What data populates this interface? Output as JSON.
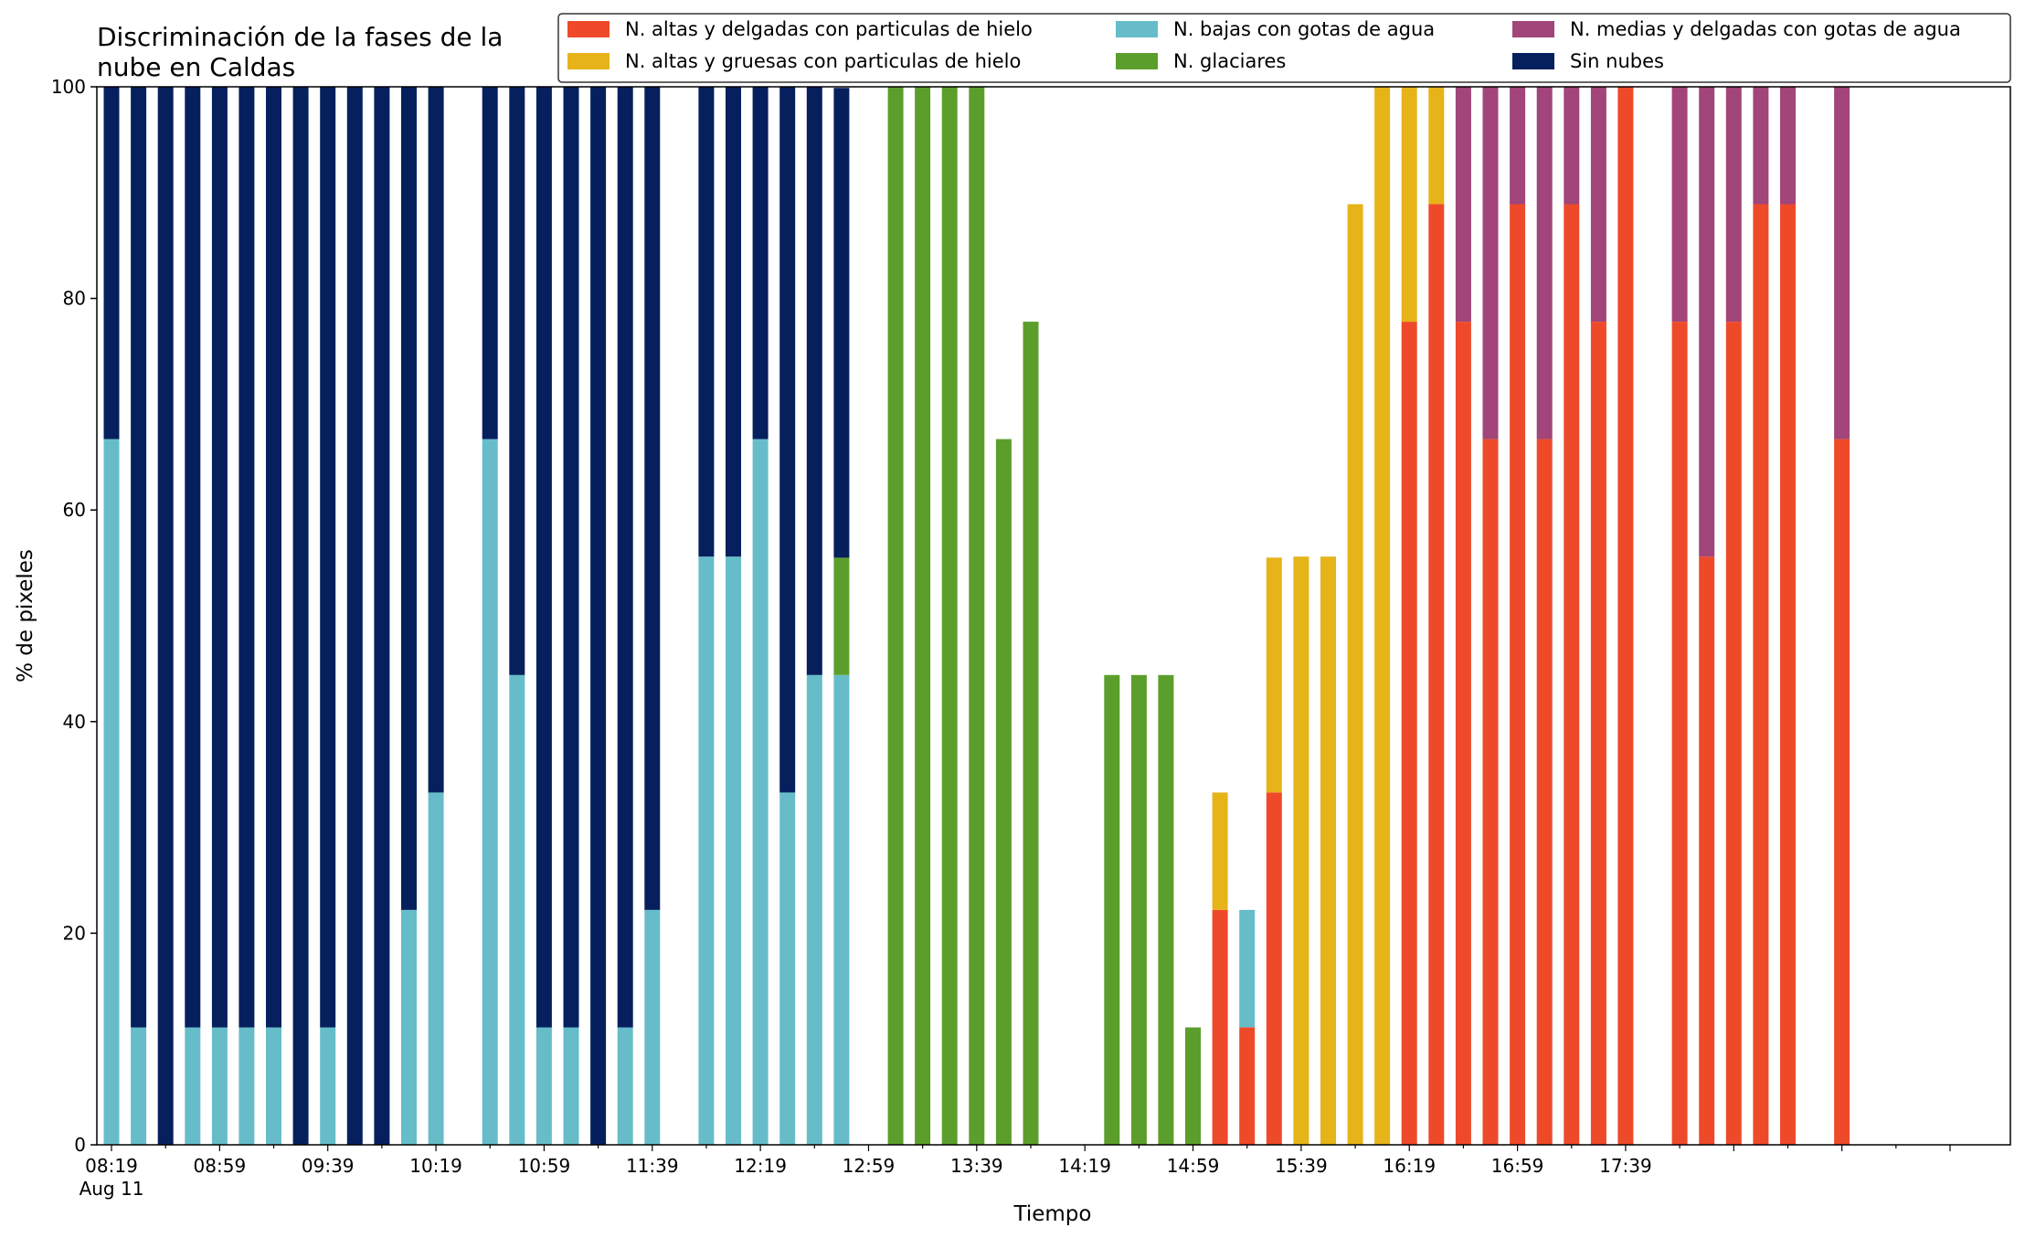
{
  "chart_data": {
    "type": "bar",
    "stacked": true,
    "title_lines": [
      "Discriminación de la fases de la",
      "nube en Caldas"
    ],
    "xlabel": "Tiempo",
    "ylabel": "% de pixeles",
    "ylim": [
      0,
      100
    ],
    "yticks": [
      "0",
      "20",
      "40",
      "60",
      "80",
      "100"
    ],
    "xtick_labels": [
      "08:19",
      "08:59",
      "09:39",
      "10:19",
      "10:59",
      "11:39",
      "12:19",
      "12:59",
      "13:39",
      "14:19",
      "14:59",
      "15:39",
      "16:19",
      "16:59",
      "17:39"
    ],
    "xtick_sublabel": "Aug 11",
    "legend_position": "top-right",
    "categories_minutes_from_0819": [
      0,
      10,
      20,
      30,
      40,
      50,
      60,
      70,
      80,
      90,
      100,
      110,
      120,
      140,
      150,
      160,
      170,
      180,
      190,
      200,
      220,
      230,
      240,
      250,
      260,
      270,
      290,
      300,
      310,
      320,
      330,
      340,
      370,
      380,
      390,
      400,
      410,
      420,
      430,
      440,
      450,
      460,
      470,
      480,
      490,
      500,
      510,
      520,
      530,
      540,
      550,
      560,
      580,
      590,
      600,
      610,
      620,
      640,
      650,
      660,
      670,
      680,
      690
    ],
    "series": [
      {
        "name": "N. altas y delgadas con particulas de hielo",
        "color": "#ee4a2a",
        "values": [
          0,
          0,
          0,
          0,
          0,
          0,
          0,
          0,
          0,
          0,
          0,
          0,
          0,
          0,
          0,
          0,
          0,
          0,
          0,
          0,
          0,
          0,
          0,
          0,
          0,
          0,
          0,
          0,
          0,
          0,
          0,
          0,
          0,
          0,
          0,
          0,
          22.2,
          11.1,
          33.3,
          0,
          0,
          0,
          0,
          77.8,
          88.9,
          77.8,
          66.7,
          88.9,
          66.7,
          88.9,
          77.8,
          100,
          77.8,
          55.6,
          77.8,
          88.9,
          88.9,
          66.7,
          0,
          0,
          0,
          0,
          0
        ]
      },
      {
        "name": "N. altas y gruesas con particulas de hielo",
        "color": "#e6b419",
        "values": [
          0,
          0,
          0,
          0,
          0,
          0,
          0,
          0,
          0,
          0,
          0,
          0,
          0,
          0,
          0,
          0,
          0,
          0,
          0,
          0,
          0,
          0,
          0,
          0,
          0,
          0,
          0,
          0,
          0,
          0,
          0,
          0,
          0,
          0,
          0,
          0,
          11.1,
          0,
          22.2,
          55.6,
          55.6,
          88.9,
          100,
          22.2,
          11.1,
          0,
          0,
          0,
          0,
          0,
          0,
          0,
          0,
          0,
          0,
          0,
          0,
          0,
          0,
          0,
          0,
          0,
          0
        ]
      },
      {
        "name": "N. bajas con gotas de agua",
        "color": "#66bdc9",
        "values": [
          66.7,
          11.1,
          0,
          11.1,
          11.1,
          11.1,
          11.1,
          0,
          11.1,
          0,
          0,
          22.2,
          33.3,
          66.7,
          44.4,
          11.1,
          11.1,
          0,
          11.1,
          22.2,
          55.6,
          55.6,
          66.7,
          33.3,
          44.4,
          44.4,
          0,
          0,
          0,
          0,
          0,
          0,
          0,
          0,
          0,
          0,
          0,
          11.1,
          0,
          0,
          0,
          0,
          0,
          0,
          0,
          0,
          0,
          0,
          0,
          0,
          0,
          0,
          0,
          0,
          0,
          0,
          0,
          0,
          0,
          0,
          0,
          0,
          0
        ]
      },
      {
        "name": "N. glaciares",
        "color": "#5c9e2c",
        "values": [
          0,
          0,
          0,
          0,
          0,
          0,
          0,
          0,
          0,
          0,
          0,
          0,
          0,
          0,
          0,
          0,
          0,
          0,
          0,
          0,
          0,
          0,
          0,
          0,
          0,
          11.1,
          100,
          100,
          100,
          100,
          66.7,
          77.8,
          44.4,
          44.4,
          44.4,
          11.1,
          0,
          0,
          0,
          0,
          0,
          0,
          0,
          0,
          0,
          0,
          0,
          0,
          0,
          0,
          0,
          0,
          0,
          0,
          0,
          0,
          0,
          0,
          0,
          0,
          0,
          0,
          0
        ]
      },
      {
        "name": "N. medias y delgadas con gotas de agua",
        "color": "#a1457a",
        "values": [
          0,
          0,
          0,
          0,
          0,
          0,
          0,
          0,
          0,
          0,
          0,
          0,
          0,
          0,
          0,
          0,
          0,
          0,
          0,
          0,
          0,
          0,
          0,
          0,
          0,
          0,
          0,
          0,
          0,
          0,
          0,
          0,
          0,
          0,
          0,
          0,
          0,
          0,
          0,
          0,
          0,
          0,
          0,
          0,
          0,
          22.2,
          33.3,
          11.1,
          33.3,
          11.1,
          22.2,
          0,
          22.2,
          44.4,
          22.2,
          11.1,
          11.1,
          33.3,
          0,
          0,
          0,
          0,
          0
        ]
      },
      {
        "name": "Sin nubes",
        "color": "#06205e",
        "values": [
          33.3,
          88.9,
          100,
          88.9,
          88.9,
          88.9,
          88.9,
          100,
          88.9,
          100,
          100,
          77.8,
          66.7,
          33.3,
          55.6,
          88.9,
          88.9,
          100,
          88.9,
          77.8,
          44.4,
          44.4,
          33.3,
          66.7,
          55.6,
          44.4,
          0,
          0,
          0,
          0,
          0,
          0,
          0,
          0,
          0,
          0,
          0,
          0,
          0,
          0,
          0,
          0,
          0,
          0,
          0,
          0,
          0,
          0,
          0,
          0,
          0,
          0,
          0,
          0,
          0,
          0,
          0,
          0,
          0,
          0,
          0,
          0,
          0
        ]
      }
    ]
  }
}
